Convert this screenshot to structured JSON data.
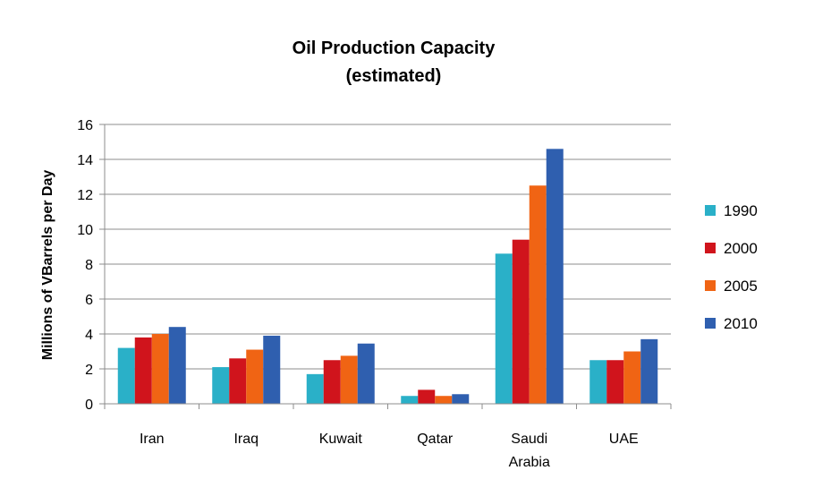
{
  "chart_data": {
    "type": "bar",
    "title": "Oil Production Capacity",
    "subtitle": "(estimated)",
    "xlabel": "",
    "ylabel": "Millions of VBarrels per Day",
    "ylim": [
      0,
      16
    ],
    "yticks": [
      0,
      2,
      4,
      6,
      8,
      10,
      12,
      14,
      16
    ],
    "grid": true,
    "legend_position": "right",
    "categories": [
      "Iran",
      "Iraq",
      "Kuwait",
      "Qatar",
      "Saudi Arabia",
      "UAE"
    ],
    "series": [
      {
        "name": "1990",
        "color": "#2ab0c8",
        "values": [
          3.2,
          2.1,
          1.7,
          0.45,
          8.6,
          2.5
        ]
      },
      {
        "name": "2000",
        "color": "#d0141c",
        "values": [
          3.8,
          2.6,
          2.5,
          0.8,
          9.4,
          2.5
        ]
      },
      {
        "name": "2005",
        "color": "#f06414",
        "values": [
          4.0,
          3.1,
          2.75,
          0.45,
          12.5,
          3.0
        ]
      },
      {
        "name": "2010",
        "color": "#2f5faf",
        "values": [
          4.4,
          3.9,
          3.45,
          0.55,
          14.6,
          3.7
        ]
      }
    ]
  }
}
